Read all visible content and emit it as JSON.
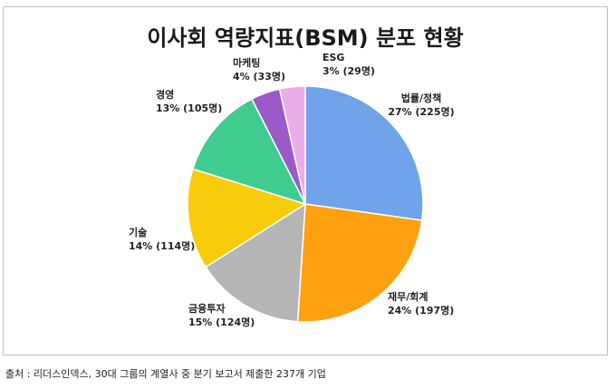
{
  "chart_data": {
    "type": "pie",
    "title": "이사회 역량지표(BSM) 분포 현황",
    "slices": [
      {
        "name": "법률/정책",
        "line1": "법률/정책",
        "line2": "27% (225명)",
        "percent": 27,
        "count": 225,
        "color": "#6fa3ea"
      },
      {
        "name": "재무/회계",
        "line1": "재무/회계",
        "line2": "24% (197명)",
        "percent": 24,
        "count": 197,
        "color": "#ffa010"
      },
      {
        "name": "금융투자",
        "line1": "금융투자",
        "line2": "15% (124명)",
        "percent": 15,
        "count": 124,
        "color": "#b5b5b5"
      },
      {
        "name": "기술",
        "line1": "기술",
        "line2": "14% (114명)",
        "percent": 14,
        "count": 114,
        "color": "#f8cc0a"
      },
      {
        "name": "경영",
        "line1": "경영",
        "line2": "13% (105명)",
        "percent": 13,
        "count": 105,
        "color": "#41cc8f"
      },
      {
        "name": "마케팅",
        "line1": "마케팅",
        "line2": "4% (33명)",
        "percent": 4,
        "count": 33,
        "color": "#9a5ac8"
      },
      {
        "name": "ESG",
        "line1": "ESG",
        "line2": "3% (29명)",
        "percent": 3,
        "count": 29,
        "color": "#ecaee8"
      }
    ]
  },
  "source": "출처 : 리더스인덱스, 30대 그룹의 계열사 중 분기 보고서 제출한 237개 기업"
}
